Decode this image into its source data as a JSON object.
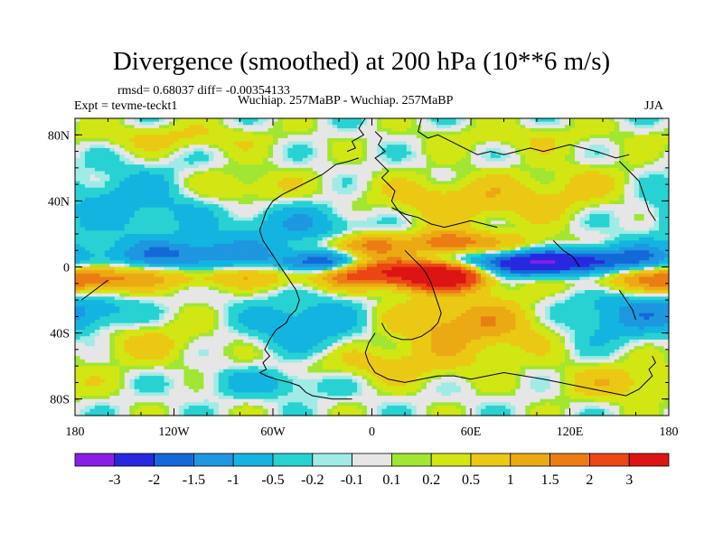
{
  "chart_data": {
    "type": "heatmap",
    "title": "Divergence (smoothed) at 200 hPa (10**6 m/s)",
    "stats": "rmsd= 0.68037 diff= -0.00354133",
    "experiment": "Expt = tevme-teckt1",
    "comparison": "Wuchiap. 257MaBP - Wuchiap. 257MaBP",
    "season": "JJA",
    "xlabel": "",
    "ylabel": "",
    "xlim": [
      -180,
      180
    ],
    "ylim": [
      -90,
      90
    ],
    "x_ticks": [
      {
        "value": -180,
        "label": "180"
      },
      {
        "value": -120,
        "label": "120W"
      },
      {
        "value": -60,
        "label": "60W"
      },
      {
        "value": 0,
        "label": "0"
      },
      {
        "value": 60,
        "label": "60E"
      },
      {
        "value": 120,
        "label": "120E"
      },
      {
        "value": 180,
        "label": "180"
      }
    ],
    "y_ticks": [
      {
        "value": 80,
        "label": "80N"
      },
      {
        "value": 40,
        "label": "40N"
      },
      {
        "value": 0,
        "label": "0"
      },
      {
        "value": -40,
        "label": "40S"
      },
      {
        "value": -80,
        "label": "80S"
      }
    ],
    "colorbar": {
      "colors": [
        "#8a1ee6",
        "#2828e0",
        "#1468d8",
        "#1e96e0",
        "#14b4e0",
        "#28d2d2",
        "#a0ebe6",
        "#e6e6e6",
        "#a0e632",
        "#d2e614",
        "#ebc814",
        "#ebaa14",
        "#eb7d14",
        "#eb4614",
        "#dc1414"
      ],
      "levels": [
        "-3",
        "-2",
        "-1.5",
        "-1",
        "-0.5",
        "-0.2",
        "-0.1",
        "0.1",
        "0.2",
        "0.5",
        "1",
        "1.5",
        "2",
        "3"
      ],
      "level_values": [
        -3,
        -2,
        -1.5,
        -1,
        -0.5,
        -0.2,
        -0.1,
        0.1,
        0.2,
        0.5,
        1,
        1.5,
        2,
        3
      ]
    },
    "features": [
      {
        "lon": -30,
        "lat": 2,
        "amp": -2.8,
        "wlon": 18,
        "wlat": 5
      },
      {
        "lon": 95,
        "lat": 2,
        "amp": -3.2,
        "wlon": 38,
        "wlat": 6
      },
      {
        "lon": -110,
        "lat": 7,
        "amp": -1.6,
        "wlon": 35,
        "wlat": 7
      },
      {
        "lon": 155,
        "lat": 4,
        "amp": -1.2,
        "wlon": 25,
        "wlat": 7
      },
      {
        "lon": 10,
        "lat": -3,
        "amp": 3.2,
        "wlon": 38,
        "wlat": 6
      },
      {
        "lon": 45,
        "lat": -6,
        "amp": 3.0,
        "wlon": 18,
        "wlat": 6
      },
      {
        "lon": -170,
        "lat": -8,
        "amp": 1.6,
        "wlon": 20,
        "wlat": 6
      },
      {
        "lon": -110,
        "lat": -6,
        "amp": 1.0,
        "wlon": 40,
        "wlat": 5
      },
      {
        "lon": 150,
        "lat": -6,
        "amp": 1.4,
        "wlon": 28,
        "wlat": 6
      },
      {
        "lon": -5,
        "lat": 13,
        "amp": 2.0,
        "wlon": 16,
        "wlat": 5
      },
      {
        "lon": 45,
        "lat": 15,
        "amp": 1.8,
        "wlon": 14,
        "wlat": 5
      },
      {
        "lon": 80,
        "lat": 13,
        "amp": 1.0,
        "wlon": 30,
        "wlat": 5
      },
      {
        "lon": -40,
        "lat": 25,
        "amp": -0.9,
        "wlon": 30,
        "wlat": 10
      },
      {
        "lon": -150,
        "lat": 40,
        "amp": -0.8,
        "wlon": 40,
        "wlat": 15
      },
      {
        "lon": -80,
        "lat": 48,
        "amp": 0.7,
        "wlon": 25,
        "wlat": 8
      },
      {
        "lon": 60,
        "lat": 40,
        "amp": 0.9,
        "wlon": 45,
        "wlat": 10
      },
      {
        "lon": 140,
        "lat": 50,
        "amp": 0.5,
        "wlon": 30,
        "wlat": 10
      },
      {
        "lon": -120,
        "lat": 78,
        "amp": 0.6,
        "wlon": 40,
        "wlat": 6
      },
      {
        "lon": 90,
        "lat": 78,
        "amp": 0.4,
        "wlon": 40,
        "wlat": 6
      },
      {
        "lon": 60,
        "lat": -35,
        "amp": 1.4,
        "wlon": 35,
        "wlat": 12
      },
      {
        "lon": 150,
        "lat": -30,
        "amp": -1.0,
        "wlon": 30,
        "wlat": 12
      },
      {
        "lon": -40,
        "lat": -35,
        "amp": -1.0,
        "wlon": 25,
        "wlat": 12
      },
      {
        "lon": -140,
        "lat": -45,
        "amp": 0.6,
        "wlon": 30,
        "wlat": 10
      },
      {
        "lon": -170,
        "lat": -28,
        "amp": -0.8,
        "wlon": 20,
        "wlat": 8
      },
      {
        "lon": 10,
        "lat": -60,
        "amp": 0.7,
        "wlon": 40,
        "wlat": 8
      },
      {
        "lon": -60,
        "lat": -70,
        "amp": -0.7,
        "wlon": 30,
        "wlat": 6
      },
      {
        "lon": 150,
        "lat": -70,
        "amp": 0.8,
        "wlon": 25,
        "wlat": 8
      }
    ],
    "coastlines": [
      [
        [
          -4,
          90
        ],
        [
          -8,
          84
        ],
        [
          -5,
          80
        ],
        [
          -12,
          76
        ],
        [
          -10,
          72
        ],
        [
          -15,
          70
        ]
      ],
      [
        [
          -8,
          66
        ],
        [
          -14,
          64
        ],
        [
          -22,
          62
        ],
        [
          -30,
          56
        ],
        [
          -38,
          52
        ],
        [
          -46,
          48
        ],
        [
          -54,
          44
        ],
        [
          -60,
          40
        ],
        [
          -64,
          34
        ],
        [
          -66,
          28
        ],
        [
          -68,
          22
        ],
        [
          -66,
          16
        ],
        [
          -62,
          10
        ],
        [
          -58,
          4
        ],
        [
          -54,
          -2
        ],
        [
          -50,
          -8
        ],
        [
          -46,
          -14
        ],
        [
          -44,
          -20
        ],
        [
          -46,
          -26
        ],
        [
          -50,
          -30
        ],
        [
          -52,
          -34
        ],
        [
          -58,
          -38
        ],
        [
          -62,
          -44
        ],
        [
          -65,
          -50
        ],
        [
          -62,
          -54
        ],
        [
          -66,
          -58
        ],
        [
          -64,
          -62
        ],
        [
          -68,
          -64
        ],
        [
          -64,
          -66
        ],
        [
          -58,
          -68
        ],
        [
          -50,
          -70
        ],
        [
          -44,
          -72
        ],
        [
          -40,
          -76
        ],
        [
          -36,
          -78
        ],
        [
          -30,
          -79
        ],
        [
          -24,
          -80
        ],
        [
          -12,
          -80
        ]
      ],
      [
        [
          2,
          82
        ],
        [
          6,
          78
        ],
        [
          4,
          74
        ],
        [
          8,
          70
        ],
        [
          2,
          66
        ],
        [
          6,
          62
        ],
        [
          10,
          58
        ],
        [
          6,
          54
        ],
        [
          10,
          50
        ],
        [
          14,
          46
        ],
        [
          12,
          40
        ],
        [
          16,
          34
        ],
        [
          20,
          30
        ],
        [
          24,
          26
        ]
      ],
      [
        [
          30,
          90
        ],
        [
          28,
          82
        ],
        [
          34,
          78
        ],
        [
          40,
          80
        ],
        [
          48,
          76
        ],
        [
          56,
          72
        ],
        [
          64,
          68
        ],
        [
          72,
          70
        ],
        [
          80,
          68
        ],
        [
          88,
          70
        ],
        [
          96,
          72
        ],
        [
          104,
          70
        ],
        [
          112,
          72
        ],
        [
          120,
          74
        ],
        [
          128,
          72
        ],
        [
          136,
          70
        ],
        [
          142,
          68
        ],
        [
          148,
          66
        ],
        [
          156,
          68
        ]
      ],
      [
        [
          12,
          36
        ],
        [
          20,
          32
        ],
        [
          28,
          30
        ],
        [
          36,
          26
        ],
        [
          44,
          24
        ],
        [
          52,
          26
        ],
        [
          60,
          28
        ],
        [
          68,
          26
        ],
        [
          76,
          24
        ]
      ],
      [
        [
          20,
          10
        ],
        [
          26,
          4
        ],
        [
          30,
          0
        ],
        [
          33,
          -4
        ],
        [
          36,
          -10
        ],
        [
          38,
          -16
        ],
        [
          40,
          -22
        ],
        [
          42,
          -28
        ],
        [
          40,
          -34
        ],
        [
          36,
          -38
        ],
        [
          30,
          -42
        ],
        [
          24,
          -44
        ],
        [
          18,
          -44
        ],
        [
          12,
          -42
        ],
        [
          8,
          -38
        ],
        [
          6,
          -34
        ]
      ],
      [
        [
          2,
          -40
        ],
        [
          -2,
          -46
        ],
        [
          -4,
          -52
        ],
        [
          -2,
          -58
        ],
        [
          2,
          -64
        ],
        [
          10,
          -68
        ],
        [
          20,
          -70
        ],
        [
          30,
          -68
        ],
        [
          40,
          -66
        ],
        [
          50,
          -66
        ],
        [
          60,
          -68
        ],
        [
          70,
          -66
        ],
        [
          80,
          -64
        ],
        [
          92,
          -66
        ],
        [
          104,
          -68
        ],
        [
          114,
          -70
        ],
        [
          124,
          -72
        ],
        [
          134,
          -74
        ],
        [
          144,
          -76
        ],
        [
          154,
          -78
        ],
        [
          162,
          -74
        ],
        [
          166,
          -70
        ],
        [
          170,
          -66
        ],
        [
          168,
          -62
        ],
        [
          172,
          -58
        ],
        [
          170,
          -54
        ]
      ],
      [
        [
          150,
          64
        ],
        [
          156,
          58
        ],
        [
          162,
          52
        ],
        [
          164,
          46
        ],
        [
          166,
          40
        ],
        [
          168,
          34
        ],
        [
          172,
          28
        ]
      ],
      [
        [
          110,
          16
        ],
        [
          116,
          10
        ],
        [
          122,
          6
        ],
        [
          126,
          0
        ]
      ],
      [
        [
          150,
          -14
        ],
        [
          154,
          -20
        ],
        [
          158,
          -26
        ],
        [
          160,
          -32
        ]
      ],
      [
        [
          -160,
          -8
        ],
        [
          -168,
          -14
        ],
        [
          -176,
          -20
        ]
      ]
    ]
  }
}
